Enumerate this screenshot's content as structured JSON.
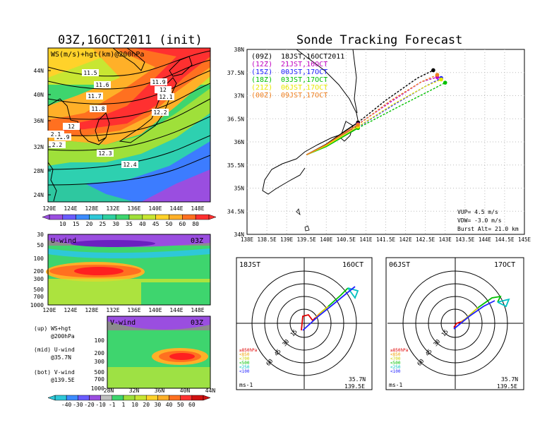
{
  "left_title": "03Z,16OCT2011 (init)",
  "right_title": "Sonde Tracking Forecast",
  "map_panel": {
    "label": "WS(m/s)+hgt(km)@200hPa",
    "lat_labels": [
      "44N",
      "40N",
      "36N",
      "32N",
      "28N",
      "24N"
    ],
    "lon_labels": [
      "120E",
      "124E",
      "128E",
      "132E",
      "136E",
      "140E",
      "144E",
      "148E"
    ],
    "contour_labels": [
      "11.5",
      "11.6",
      "11.7",
      "11.8",
      "11.9",
      "12",
      "2.1",
      "2.2",
      "12.3",
      "12.4",
      "11.9",
      "12",
      "12.1",
      "12.2"
    ],
    "colorbar": [
      "10",
      "15",
      "20",
      "25",
      "30",
      "35",
      "40",
      "45",
      "50",
      "60",
      "80"
    ]
  },
  "u_panel": {
    "label": "U-wind",
    "time": "03Z",
    "p_labels": [
      "30",
      "50",
      "100",
      "200",
      "300",
      "500",
      "700",
      "1000"
    ],
    "lon_labels": [
      "120E",
      "124E",
      "128E",
      "132E",
      "136E",
      "140E",
      "144E",
      "148E"
    ]
  },
  "v_panel": {
    "label": "V-wind",
    "time": "03Z",
    "p_labels": [
      "100",
      "200",
      "300",
      "500",
      "700",
      "1000"
    ],
    "lat_labels": [
      "28N",
      "32N",
      "36N",
      "40N",
      "44N"
    ]
  },
  "legend_notes": [
    {
      "a": "(up) WS+hgt",
      "b": "@200hPa"
    },
    {
      "a": "(mid) U-wind",
      "b": "@35.7N"
    },
    {
      "a": "(bot) V-wind",
      "b": "@139.5E"
    }
  ],
  "bottom_colorbar": [
    "-40",
    "-30",
    "-20",
    "-10",
    "-1",
    "1",
    "10",
    "20",
    "30",
    "40",
    "50",
    "60"
  ],
  "track_map": {
    "lat_labels": [
      "38N",
      "37.5N",
      "37N",
      "36.5N",
      "36N",
      "35.5N",
      "35N",
      "34.5N",
      "34N"
    ],
    "lon_labels": [
      "138E",
      "138.5E",
      "139E",
      "139.5E",
      "140E",
      "140.5E",
      "141E",
      "141.5E",
      "142E",
      "142.5E",
      "143E",
      "143.5E",
      "144E",
      "144.5E",
      "145E"
    ],
    "legend": [
      {
        "code": "(09Z)",
        "time": "18JST,16OCT2011",
        "color": "#000000"
      },
      {
        "code": "(12Z)",
        "time": "21JST,16OCT",
        "color": "#c000c0"
      },
      {
        "code": "(15Z)",
        "time": "00JST,17OCT",
        "color": "#2020ff"
      },
      {
        "code": "(18Z)",
        "time": "03JST,17OCT",
        "color": "#00c000"
      },
      {
        "code": "(21Z)",
        "time": "06JST,17OCT",
        "color": "#e8e800"
      },
      {
        "code": "(00Z)",
        "time": "09JST,17OCT",
        "color": "#f08020"
      }
    ],
    "params": [
      "VUP=  4.5 m/s",
      "VDW= -3.0 m/s",
      "Burst Alt= 21.0 km"
    ]
  },
  "hodo_left": {
    "time": "18JST",
    "date": "16OCT",
    "units": "ms-1",
    "lat": "35.7N",
    "lon": "139.5E"
  },
  "hodo_right": {
    "time": "06JST",
    "date": "17OCT",
    "units": "ms-1",
    "lat": "35.7N",
    "lon": "139.5E"
  },
  "hodo_rings": [
    "15",
    "30",
    "45",
    "60"
  ],
  "hodo_legend": [
    {
      "t": "≥850hPa",
      "c": "#e00000"
    },
    {
      "t": "<850",
      "c": "#f0a000"
    },
    {
      "t": "<700",
      "c": "#d0d000"
    },
    {
      "t": "<500",
      "c": "#00c000"
    },
    {
      "t": "<250",
      "c": "#00c0c0"
    },
    {
      "t": "<100",
      "c": "#2020ff"
    }
  ],
  "chart_data": {
    "type": "line",
    "title": "Sonde Tracking Forecast",
    "xlabel": "",
    "ylabel": "",
    "xlim": [
      138,
      145
    ],
    "ylim": [
      34,
      38
    ],
    "series": [
      {
        "name": "(09Z)",
        "color": "#000000",
        "x": [
          139.5,
          140.0,
          140.5,
          140.8,
          141.5,
          142.3,
          142.7
        ],
        "y": [
          35.72,
          35.95,
          36.25,
          36.42,
          36.9,
          37.38,
          37.55
        ]
      },
      {
        "name": "(12Z)",
        "color": "#c000c0",
        "x": [
          139.5,
          140.0,
          140.5,
          140.8,
          141.6,
          142.4,
          142.8
        ],
        "y": [
          35.72,
          35.93,
          36.2,
          36.38,
          36.85,
          37.3,
          37.4
        ]
      },
      {
        "name": "(15Z)",
        "color": "#2020ff",
        "x": [
          139.5,
          140.0,
          140.5,
          140.8,
          141.7,
          142.5,
          142.9
        ],
        "y": [
          35.72,
          35.92,
          36.18,
          36.32,
          36.8,
          37.2,
          37.38
        ]
      },
      {
        "name": "(18Z)",
        "color": "#00c000",
        "x": [
          139.5,
          140.0,
          140.5,
          140.8,
          141.8,
          142.6,
          143.0
        ],
        "y": [
          35.72,
          35.9,
          36.15,
          36.3,
          36.75,
          37.1,
          37.28
        ]
      },
      {
        "name": "(21Z)",
        "color": "#e8e800",
        "x": [
          139.5,
          140.0,
          140.5,
          140.8,
          141.7,
          142.5,
          142.9
        ],
        "y": [
          35.72,
          35.92,
          36.18,
          36.33,
          36.82,
          37.2,
          37.35
        ]
      },
      {
        "name": "(00Z)",
        "color": "#f08020",
        "x": [
          139.5,
          140.0,
          140.5,
          140.8,
          141.6,
          142.4,
          142.8
        ],
        "y": [
          35.72,
          35.94,
          36.22,
          36.37,
          36.88,
          37.3,
          37.45
        ]
      }
    ]
  }
}
